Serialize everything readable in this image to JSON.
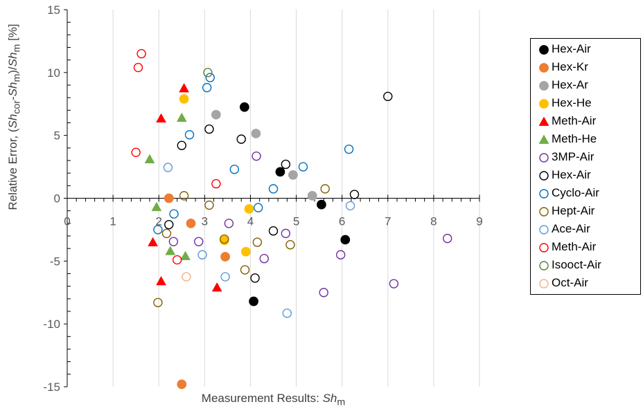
{
  "chart_data": {
    "type": "scatter",
    "xlabel": "Measurement Results: Sh_m",
    "ylabel": "Relative Error, (Sh_cor-Sh_m)/Sh_m [%]",
    "xlim": [
      0,
      9
    ],
    "ylim": [
      -15,
      15
    ],
    "x_ticks": [
      "0",
      "1",
      "2",
      "3",
      "4",
      "5",
      "6",
      "7",
      "8",
      "9"
    ],
    "y_ticks": [
      "15",
      "10",
      "5",
      "0",
      "-5",
      "-10",
      "-15"
    ],
    "grid": "vertical",
    "legend_position": "right",
    "series": [
      {
        "name": "Hex-Air",
        "marker": "circle-filled",
        "color": "#000000",
        "points": [
          [
            3.87,
            7.25
          ],
          [
            4.65,
            2.1
          ],
          [
            5.55,
            -0.5
          ],
          [
            6.07,
            -3.3
          ],
          [
            4.07,
            -8.2
          ]
        ]
      },
      {
        "name": "Hex-Kr",
        "marker": "circle-filled",
        "color": "#ED7D31",
        "points": [
          [
            2.22,
            0.0
          ],
          [
            2.7,
            -2.0
          ],
          [
            3.45,
            -4.65
          ],
          [
            2.5,
            -14.8
          ]
        ]
      },
      {
        "name": "Hex-Ar",
        "marker": "circle-filled",
        "color": "#A5A5A5",
        "points": [
          [
            3.25,
            6.65
          ],
          [
            4.12,
            5.15
          ],
          [
            4.93,
            1.85
          ],
          [
            5.35,
            0.2
          ]
        ]
      },
      {
        "name": "Hex-He",
        "marker": "circle-filled",
        "color": "#FFC000",
        "points": [
          [
            2.55,
            7.9
          ],
          [
            3.43,
            -3.35
          ],
          [
            3.9,
            -4.25
          ],
          [
            3.97,
            -0.85
          ]
        ]
      },
      {
        "name": "Meth-Air",
        "marker": "triangle-filled",
        "color": "#FF0000",
        "points": [
          [
            2.05,
            6.35
          ],
          [
            2.55,
            8.75
          ],
          [
            1.87,
            -3.5
          ],
          [
            2.05,
            -6.6
          ],
          [
            3.27,
            -7.1
          ]
        ]
      },
      {
        "name": "Meth-He",
        "marker": "triangle-filled",
        "color": "#70AD47",
        "points": [
          [
            1.8,
            3.1
          ],
          [
            2.5,
            6.4
          ],
          [
            1.95,
            -0.7
          ],
          [
            2.25,
            -4.2
          ],
          [
            2.58,
            -4.6
          ]
        ]
      },
      {
        "name": "3MP-Air",
        "marker": "circle-open",
        "color": "#7030A0",
        "points": [
          [
            4.13,
            3.35
          ],
          [
            3.53,
            -2.0
          ],
          [
            2.87,
            -3.45
          ],
          [
            2.32,
            -3.45
          ],
          [
            4.3,
            -4.8
          ],
          [
            4.77,
            -2.8
          ],
          [
            5.97,
            -4.5
          ],
          [
            5.6,
            -7.5
          ],
          [
            7.13,
            -6.8
          ],
          [
            8.3,
            -3.2
          ]
        ]
      },
      {
        "name": "Hex-Air",
        "marker": "circle-open",
        "color": "#000000",
        "points": [
          [
            2.5,
            4.2
          ],
          [
            3.1,
            5.5
          ],
          [
            3.8,
            4.7
          ],
          [
            4.77,
            2.7
          ],
          [
            6.27,
            0.3
          ],
          [
            7.0,
            8.1
          ],
          [
            2.22,
            -2.1
          ],
          [
            4.5,
            -2.6
          ],
          [
            4.1,
            -6.35
          ]
        ]
      },
      {
        "name": "Cyclo-Air",
        "marker": "circle-open",
        "color": "#0070C0",
        "points": [
          [
            3.05,
            8.8
          ],
          [
            3.12,
            9.6
          ],
          [
            2.67,
            5.05
          ],
          [
            3.65,
            2.3
          ],
          [
            4.5,
            0.75
          ],
          [
            5.15,
            2.5
          ],
          [
            6.15,
            3.9
          ],
          [
            4.17,
            -0.75
          ],
          [
            2.33,
            -1.25
          ],
          [
            1.98,
            -2.5
          ]
        ]
      },
      {
        "name": "Hept-Air",
        "marker": "circle-open",
        "color": "#806000",
        "points": [
          [
            2.55,
            0.2
          ],
          [
            3.1,
            -0.55
          ],
          [
            3.43,
            -3.25
          ],
          [
            4.15,
            -3.5
          ],
          [
            4.87,
            -3.7
          ],
          [
            5.63,
            0.75
          ],
          [
            3.88,
            -5.7
          ],
          [
            2.17,
            -2.8
          ],
          [
            1.98,
            -8.3
          ]
        ]
      },
      {
        "name": "Ace-Air",
        "marker": "circle-open",
        "color": "#5B9BD5",
        "points": [
          [
            2.2,
            2.45
          ],
          [
            2.95,
            -4.5
          ],
          [
            3.45,
            -6.25
          ],
          [
            4.8,
            -9.15
          ],
          [
            6.18,
            -0.6
          ]
        ]
      },
      {
        "name": "Meth-Air",
        "marker": "circle-open",
        "color": "#FF0000",
        "points": [
          [
            1.62,
            11.5
          ],
          [
            1.55,
            10.4
          ],
          [
            1.5,
            3.65
          ],
          [
            3.25,
            1.15
          ],
          [
            2.4,
            -4.9
          ]
        ]
      },
      {
        "name": "Isooct-Air",
        "marker": "circle-open",
        "color": "#548235",
        "points": [
          [
            3.07,
            10.0
          ]
        ]
      },
      {
        "name": "Oct-Air",
        "marker": "circle-open",
        "color": "#F4B183",
        "points": [
          [
            2.6,
            -6.25
          ]
        ]
      }
    ]
  }
}
